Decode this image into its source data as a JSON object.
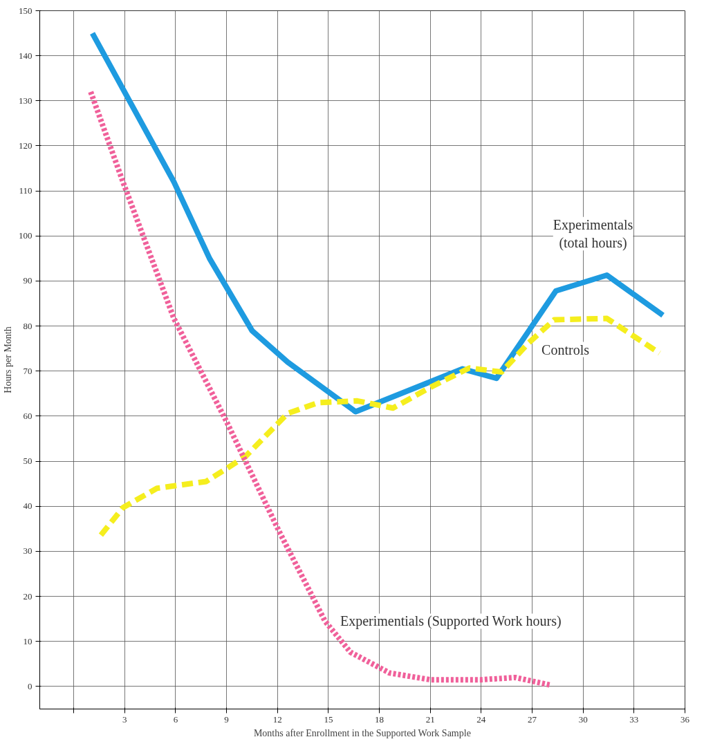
{
  "chart_data": {
    "type": "line",
    "xlabel": "Months after Enrollment in the Supported Work Sample",
    "ylabel": "Hours per Month",
    "xlim": [
      -2,
      36
    ],
    "ylim": [
      -5,
      150
    ],
    "xticks": [
      {
        "value": 0,
        "label": null
      },
      3,
      6,
      9,
      12,
      15,
      18,
      21,
      24,
      27,
      30,
      33,
      36
    ],
    "yticks": [
      0,
      10,
      20,
      30,
      40,
      50,
      60,
      70,
      80,
      90,
      100,
      110,
      120,
      130,
      140,
      150
    ],
    "grid": true,
    "series": [
      {
        "name": "Experimentals\n(total hours)",
        "color": "#1e9be0",
        "line_style": "solid",
        "x": [
          1.1,
          5.9,
          8,
          10.5,
          12.6,
          16.6,
          22.9,
          24.9,
          28.4,
          31.4,
          34.7
        ],
        "values": [
          145,
          112,
          95,
          79,
          72,
          61,
          70.5,
          68.4,
          87.8,
          91.3,
          82.4
        ]
      },
      {
        "name": "Controls",
        "color": "#f5ee1e",
        "line_style": "dashed",
        "x": [
          1.6,
          2.9,
          4.9,
          7.8,
          10.1,
          12.6,
          14.4,
          16.7,
          18.8,
          21,
          23.3,
          25.2,
          26.8,
          28.3,
          31.4,
          34.5
        ],
        "values": [
          33.6,
          39.7,
          44,
          45.5,
          51,
          60.6,
          63,
          63.4,
          61.8,
          66.4,
          70.7,
          69.8,
          76.3,
          81.4,
          81.7,
          74
        ]
      },
      {
        "name": "Experimentials (Supported Work hours)",
        "color": "#f0609a",
        "line_style": "dotted",
        "x": [
          1,
          2.9,
          5.9,
          9,
          12.1,
          14.8,
          16.3,
          18.6,
          21,
          24,
          26,
          28.1
        ],
        "values": [
          132,
          112,
          81.7,
          58.8,
          34.4,
          14.5,
          7.6,
          3,
          1.5,
          1.5,
          2,
          0.3
        ]
      }
    ]
  }
}
